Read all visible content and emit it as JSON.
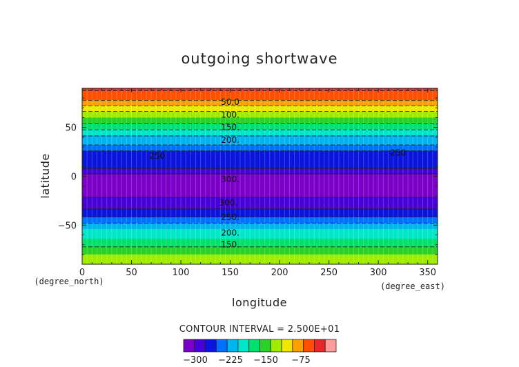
{
  "chart_data": {
    "type": "heatmap",
    "title": "outgoing shortwave",
    "xlabel": "longitude",
    "ylabel": "latitude",
    "x_units": "(degree_east)",
    "y_units": "(degree_north)",
    "xlim": [
      0,
      360
    ],
    "ylim": [
      -90,
      90
    ],
    "x_ticks": [
      "0",
      "50",
      "100",
      "150",
      "200",
      "250",
      "300",
      "350"
    ],
    "y_ticks": [
      "50",
      "0",
      "−50"
    ],
    "x_tick_values": [
      0,
      50,
      100,
      150,
      200,
      250,
      300,
      350
    ],
    "y_tick_values": [
      50,
      0,
      -50
    ],
    "contour_interval_text": "CONTOUR INTERVAL = 2.500E+01",
    "levels": [
      -325,
      -300,
      -275,
      -250,
      -225,
      -200,
      -175,
      -150,
      -125,
      -100,
      -75,
      -50,
      -25,
      0
    ],
    "colorbar_ticks": [
      "−300",
      "−225",
      "−150",
      "−75"
    ],
    "colorbar_tick_values": [
      -300,
      -225,
      -150,
      -75
    ],
    "colors": [
      "#7a00c8",
      "#4600d8",
      "#0a14dc",
      "#0070ff",
      "#00b4f0",
      "#00e6c8",
      "#00e06e",
      "#28d228",
      "#a0ec00",
      "#f0e600",
      "#ffa000",
      "#ff5000",
      "#e62828",
      "#ff9c9c"
    ],
    "zonal_profile": {
      "lat": [
        90,
        80,
        75,
        70,
        65,
        60,
        55,
        50,
        45,
        40,
        35,
        30,
        25,
        20,
        15,
        10,
        5,
        0,
        -5,
        -10,
        -15,
        -20,
        -25,
        -30,
        -35,
        -40,
        -45,
        -50,
        -55,
        -60,
        -65,
        -70,
        -75,
        -80,
        -85,
        -90
      ],
      "value": [
        -20,
        -40,
        -60,
        -85,
        -105,
        -125,
        -145,
        -165,
        -185,
        -205,
        -218,
        -230,
        -255,
        -262,
        -258,
        -268,
        -285,
        -315,
        -318,
        -314,
        -310,
        -305,
        -290,
        -282,
        -272,
        -255,
        -238,
        -218,
        -200,
        -190,
        -175,
        -158,
        -140,
        -125,
        -115,
        -110
      ]
    },
    "contour_labels": [
      {
        "text": "50.0",
        "x": 150,
        "y": 76
      },
      {
        "text": "100.",
        "x": 150,
        "y": 63
      },
      {
        "text": "150.",
        "x": 150,
        "y": 50
      },
      {
        "text": "200.",
        "x": 150,
        "y": 37
      },
      {
        "text": "250",
        "x": 76,
        "y": 21
      },
      {
        "text": "250",
        "x": 320,
        "y": 24
      },
      {
        "text": "300.",
        "x": 150,
        "y": -3
      },
      {
        "text": "300.",
        "x": 148,
        "y": -27
      },
      {
        "text": "250.",
        "x": 150,
        "y": -42
      },
      {
        "text": "200.",
        "x": 150,
        "y": -58
      },
      {
        "text": "150.",
        "x": 150,
        "y": -70
      }
    ]
  }
}
